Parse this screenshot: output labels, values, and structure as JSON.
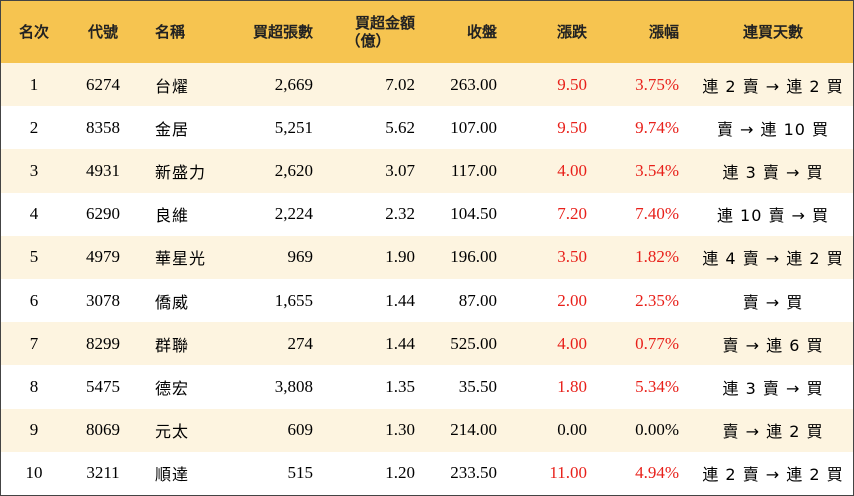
{
  "headers": {
    "rank": "名次",
    "code": "代號",
    "name": "名稱",
    "shares": "買超張數",
    "amount_line1": "買超金額",
    "amount_line2": "（億）",
    "close": "收盤",
    "change": "漲跌",
    "pct": "漲幅",
    "streak": "連買天數"
  },
  "rows": [
    {
      "rank": "1",
      "code": "6274",
      "name": "台燿",
      "shares": "2,669",
      "amount": "7.02",
      "close": "263.00",
      "change": "9.50",
      "pct": "3.75%",
      "streak": "連 2 賣 → 連 2 買"
    },
    {
      "rank": "2",
      "code": "8358",
      "name": "金居",
      "shares": "5,251",
      "amount": "5.62",
      "close": "107.00",
      "change": "9.50",
      "pct": "9.74%",
      "streak": "賣 → 連 10 買"
    },
    {
      "rank": "3",
      "code": "4931",
      "name": "新盛力",
      "shares": "2,620",
      "amount": "3.07",
      "close": "117.00",
      "change": "4.00",
      "pct": "3.54%",
      "streak": "連 3 賣 → 買"
    },
    {
      "rank": "4",
      "code": "6290",
      "name": "良維",
      "shares": "2,224",
      "amount": "2.32",
      "close": "104.50",
      "change": "7.20",
      "pct": "7.40%",
      "streak": "連 10 賣 → 買"
    },
    {
      "rank": "5",
      "code": "4979",
      "name": "華星光",
      "shares": "969",
      "amount": "1.90",
      "close": "196.00",
      "change": "3.50",
      "pct": "1.82%",
      "streak": "連 4 賣 → 連 2 買"
    },
    {
      "rank": "6",
      "code": "3078",
      "name": "僑威",
      "shares": "1,655",
      "amount": "1.44",
      "close": "87.00",
      "change": "2.00",
      "pct": "2.35%",
      "streak": "賣 → 買"
    },
    {
      "rank": "7",
      "code": "8299",
      "name": "群聯",
      "shares": "274",
      "amount": "1.44",
      "close": "525.00",
      "change": "4.00",
      "pct": "0.77%",
      "streak": "賣 → 連 6 買"
    },
    {
      "rank": "8",
      "code": "5475",
      "name": "德宏",
      "shares": "3,808",
      "amount": "1.35",
      "close": "35.50",
      "change": "1.80",
      "pct": "5.34%",
      "streak": "連 3 賣 → 買"
    },
    {
      "rank": "9",
      "code": "8069",
      "name": "元太",
      "shares": "609",
      "amount": "1.30",
      "close": "214.00",
      "change": "0.00",
      "pct": "0.00%",
      "streak": "賣 → 連 2 買"
    },
    {
      "rank": "10",
      "code": "3211",
      "name": "順達",
      "shares": "515",
      "amount": "1.20",
      "close": "233.50",
      "change": "11.00",
      "pct": "4.94%",
      "streak": "連 2 賣 → 連 2 買"
    }
  ],
  "colors": {
    "header_bg": "#f6c450",
    "odd_row_bg": "#fdf4e0",
    "positive_change": "#e8201a",
    "neutral_change": "#000000"
  }
}
